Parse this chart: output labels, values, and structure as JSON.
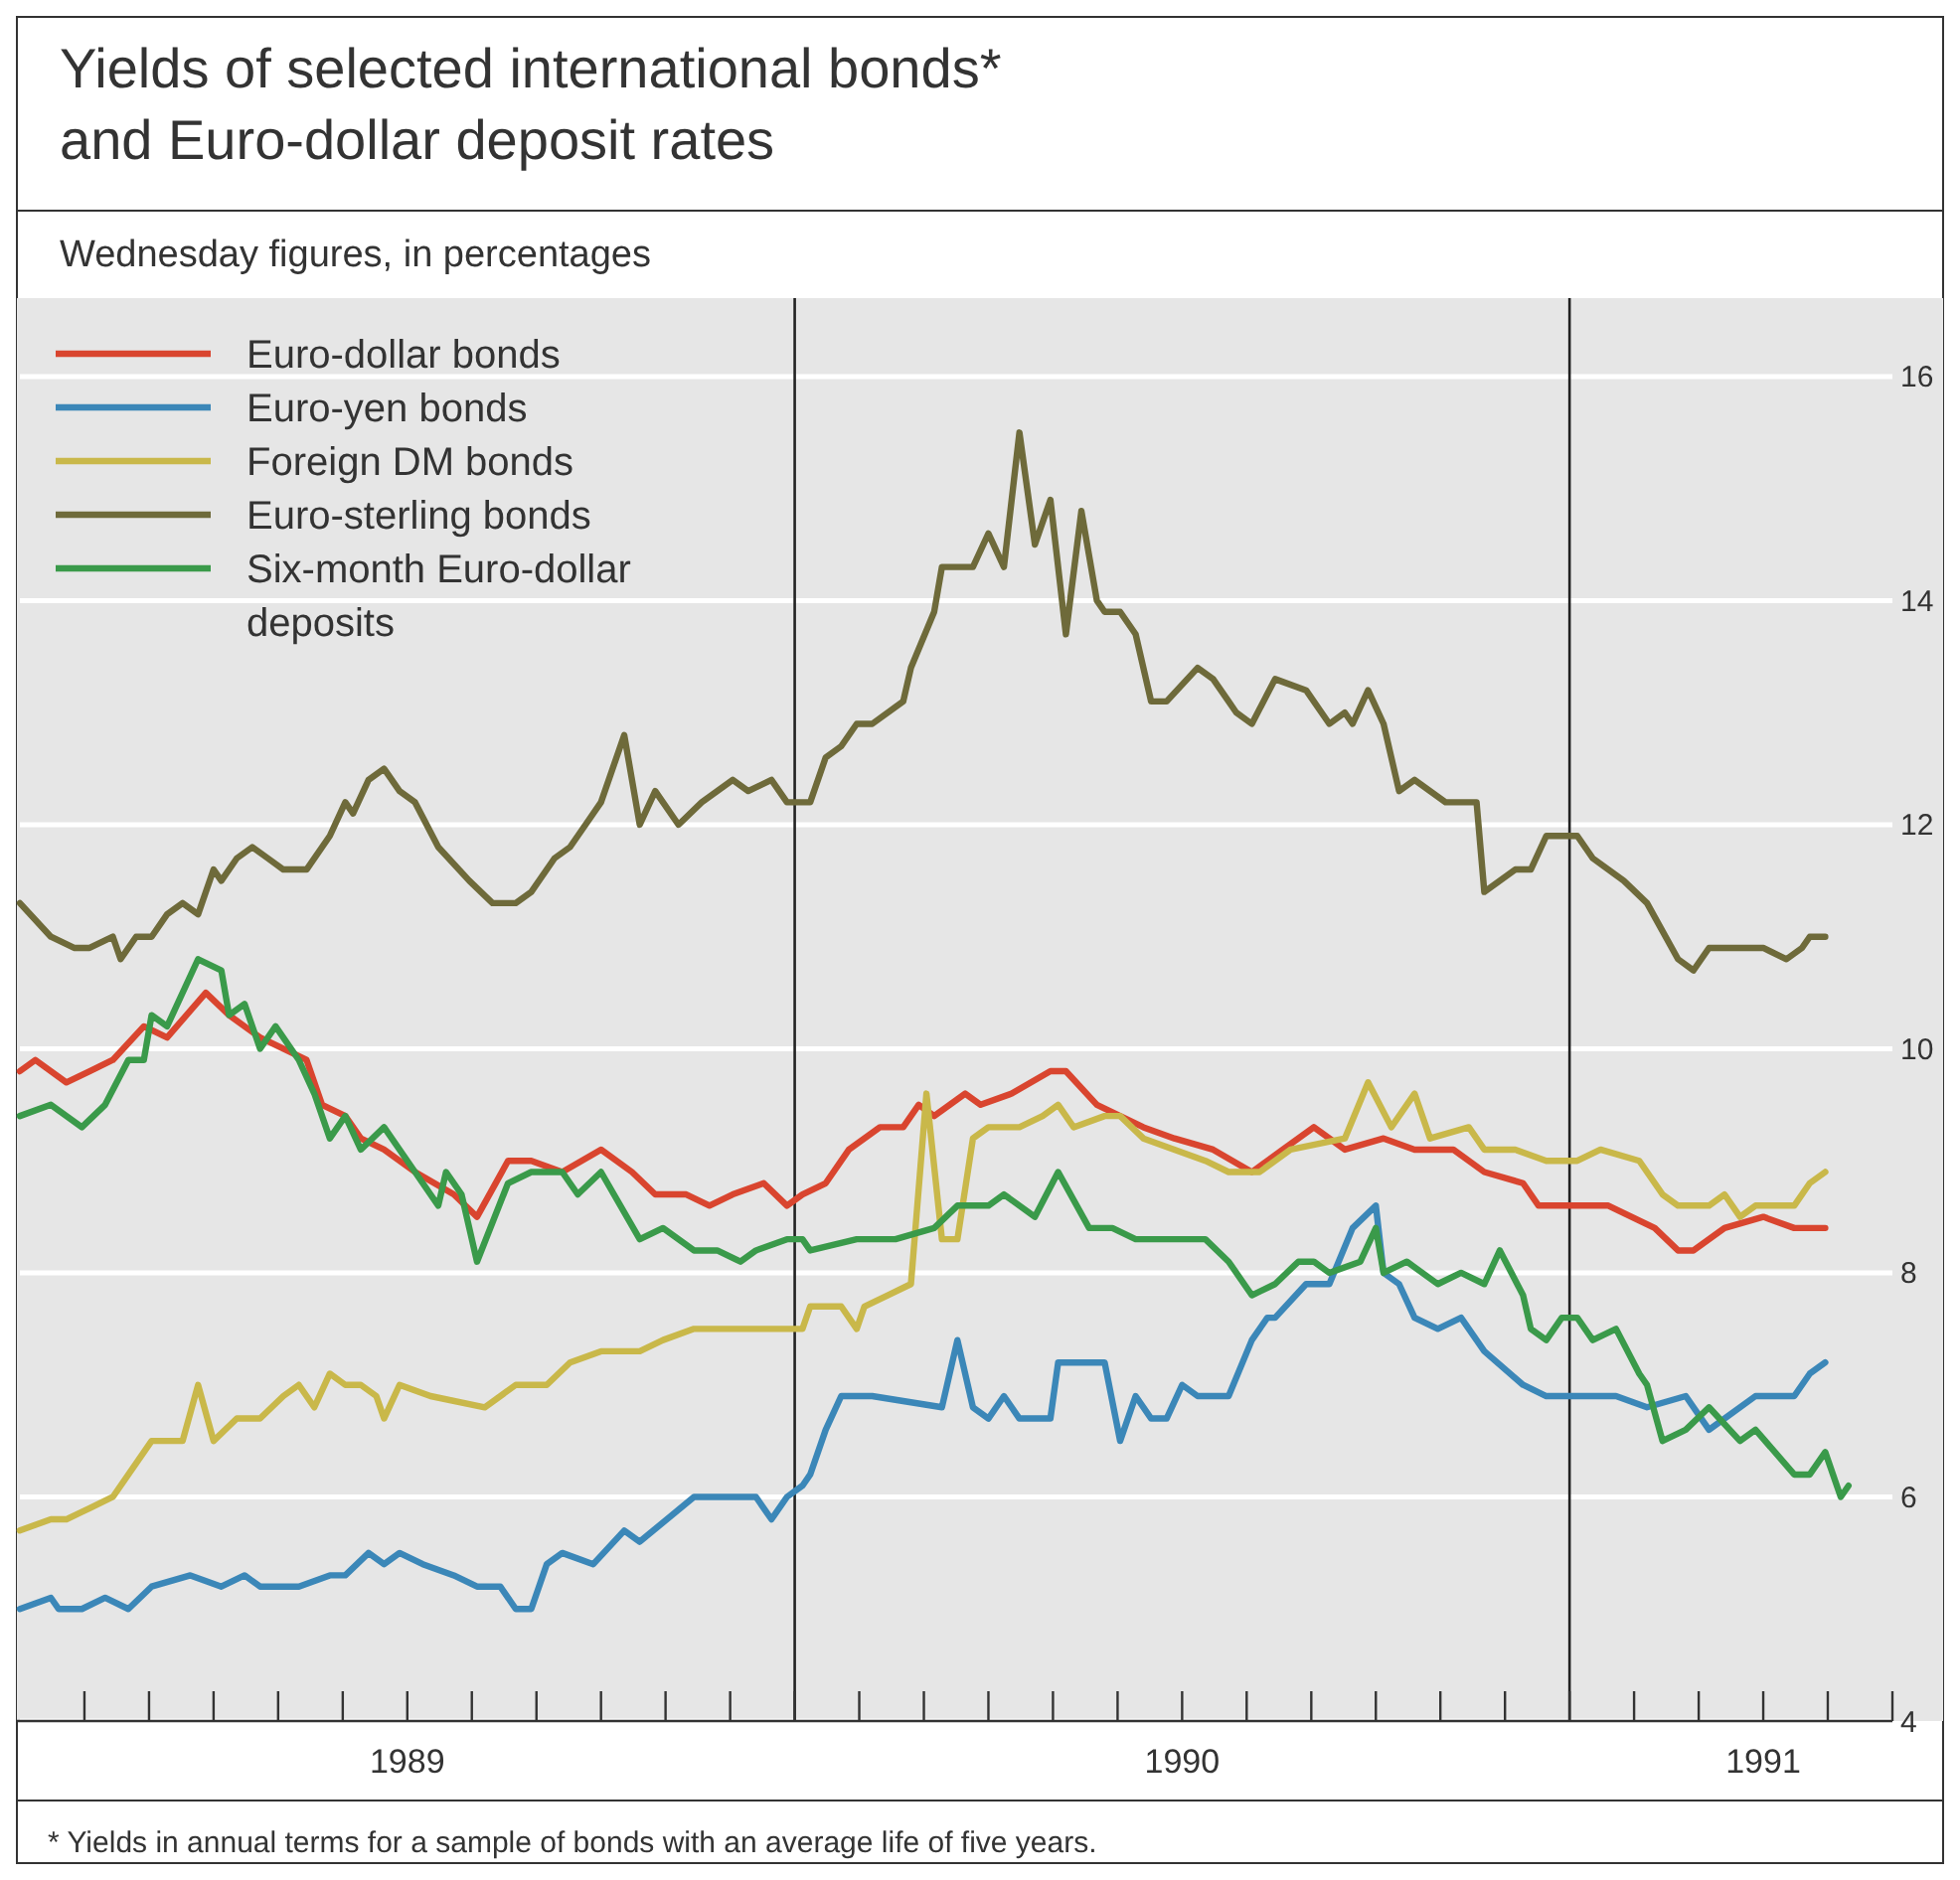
{
  "chart_data": {
    "type": "line",
    "title": "Yields of selected international bonds* and Euro-dollar deposit rates",
    "subtitle": "Wednesday figures, in percentages",
    "annotations": [
      "* Yields in annual terms for a sample of bonds with an average life of five years."
    ],
    "xlim": [
      1989,
      1991.4167
    ],
    "ylim": [
      4,
      16.7
    ],
    "yticks": [
      4,
      6,
      8,
      10,
      12,
      14,
      16
    ],
    "xticks": [
      {
        "value": 1989.0833,
        "label": null
      },
      {
        "value": 1989.1667,
        "label": null
      },
      {
        "value": 1989.25,
        "label": null
      },
      {
        "value": 1989.3333,
        "label": null
      },
      {
        "value": 1989.4167,
        "label": null
      },
      {
        "value": 1989.5,
        "label": "1989"
      },
      {
        "value": 1989.5833,
        "label": null
      },
      {
        "value": 1989.6667,
        "label": null
      },
      {
        "value": 1989.75,
        "label": null
      },
      {
        "value": 1989.8333,
        "label": null
      },
      {
        "value": 1989.9167,
        "label": null
      },
      {
        "value": 1990,
        "label": null
      },
      {
        "value": 1990.0833,
        "label": null
      },
      {
        "value": 1990.1667,
        "label": null
      },
      {
        "value": 1990.25,
        "label": null
      },
      {
        "value": 1990.3333,
        "label": null
      },
      {
        "value": 1990.4167,
        "label": null
      },
      {
        "value": 1990.5,
        "label": "1990"
      },
      {
        "value": 1990.5833,
        "label": null
      },
      {
        "value": 1990.6667,
        "label": null
      },
      {
        "value": 1990.75,
        "label": null
      },
      {
        "value": 1990.8333,
        "label": null
      },
      {
        "value": 1990.9167,
        "label": null
      },
      {
        "value": 1991,
        "label": null
      },
      {
        "value": 1991.0833,
        "label": null
      },
      {
        "value": 1991.1667,
        "label": null
      },
      {
        "value": 1991.25,
        "label": "1991"
      },
      {
        "value": 1991.3333,
        "label": null
      },
      {
        "value": 1991.4167,
        "label": null
      }
    ],
    "grid": "y",
    "legend": "top left",
    "line_style": "solid",
    "marker": "none",
    "ref_lines": [
      {
        "axis": "x",
        "value": 1990,
        "label": null,
        "color": "#222222"
      },
      {
        "axis": "x",
        "value": 1991,
        "label": null,
        "color": "#222222"
      }
    ],
    "series": [
      {
        "name": "Euro-dollar bonds",
        "color": "#d9452f",
        "x": [
          1989.0,
          1989.02,
          1989.06,
          1989.09,
          1989.12,
          1989.16,
          1989.19,
          1989.24,
          1989.27,
          1989.31,
          1989.34,
          1989.37,
          1989.39,
          1989.42,
          1989.44,
          1989.47,
          1989.51,
          1989.56,
          1989.59,
          1989.63,
          1989.66,
          1989.7,
          1989.75,
          1989.79,
          1989.82,
          1989.86,
          1989.89,
          1989.92,
          1989.96,
          1989.99,
          1990.01,
          1990.04,
          1990.07,
          1990.11,
          1990.14,
          1990.16,
          1990.18,
          1990.22,
          1990.24,
          1990.28,
          1990.33,
          1990.35,
          1990.39,
          1990.42,
          1990.45,
          1990.49,
          1990.54,
          1990.59,
          1990.63,
          1990.67,
          1990.71,
          1990.76,
          1990.8,
          1990.85,
          1990.89,
          1990.94,
          1990.96,
          1991.02,
          1991.05,
          1991.11,
          1991.14,
          1991.16,
          1991.2,
          1991.25,
          1991.29,
          1991.33
        ],
        "values": [
          9.8,
          9.9,
          9.7,
          9.8,
          9.9,
          10.2,
          10.1,
          10.5,
          10.3,
          10.1,
          10.0,
          9.9,
          9.5,
          9.4,
          9.2,
          9.1,
          8.9,
          8.7,
          8.5,
          9.0,
          9.0,
          8.9,
          9.1,
          8.9,
          8.7,
          8.7,
          8.6,
          8.7,
          8.8,
          8.6,
          8.7,
          8.8,
          9.1,
          9.3,
          9.3,
          9.5,
          9.4,
          9.6,
          9.5,
          9.6,
          9.8,
          9.8,
          9.5,
          9.4,
          9.3,
          9.2,
          9.1,
          8.9,
          9.1,
          9.3,
          9.1,
          9.2,
          9.1,
          9.1,
          8.9,
          8.8,
          8.6,
          8.6,
          8.6,
          8.4,
          8.2,
          8.2,
          8.4,
          8.5,
          8.4,
          8.4
        ]
      },
      {
        "name": "Euro-yen bonds",
        "color": "#3b87b8",
        "x": [
          1989.0,
          1989.04,
          1989.05,
          1989.08,
          1989.11,
          1989.14,
          1989.17,
          1989.22,
          1989.26,
          1989.29,
          1989.31,
          1989.34,
          1989.36,
          1989.4,
          1989.42,
          1989.45,
          1989.47,
          1989.49,
          1989.52,
          1989.56,
          1989.59,
          1989.62,
          1989.64,
          1989.66,
          1989.68,
          1989.7,
          1989.74,
          1989.78,
          1989.8,
          1989.87,
          1989.89,
          1989.95,
          1989.97,
          1989.99,
          1990.01,
          1990.02,
          1990.04,
          1990.06,
          1990.1,
          1990.19,
          1990.21,
          1990.23,
          1990.25,
          1990.27,
          1990.29,
          1990.33,
          1990.34,
          1990.39,
          1990.4,
          1990.42,
          1990.44,
          1990.46,
          1990.48,
          1990.5,
          1990.52,
          1990.56,
          1990.59,
          1990.61,
          1990.62,
          1990.66,
          1990.69,
          1990.72,
          1990.75,
          1990.76,
          1990.78,
          1990.8,
          1990.83,
          1990.86,
          1990.89,
          1990.94,
          1990.97,
          1991.02,
          1991.06,
          1991.1,
          1991.15,
          1991.18,
          1991.2,
          1991.24,
          1991.29,
          1991.31,
          1991.33
        ],
        "values": [
          5.0,
          5.1,
          5.0,
          5.0,
          5.1,
          5.0,
          5.2,
          5.3,
          5.2,
          5.3,
          5.2,
          5.2,
          5.2,
          5.3,
          5.3,
          5.5,
          5.4,
          5.5,
          5.4,
          5.3,
          5.2,
          5.2,
          5.0,
          5.0,
          5.4,
          5.5,
          5.4,
          5.7,
          5.6,
          6.0,
          6.0,
          6.0,
          5.8,
          6.0,
          6.1,
          6.2,
          6.6,
          6.9,
          6.9,
          6.8,
          7.4,
          6.8,
          6.7,
          6.9,
          6.7,
          6.7,
          7.2,
          7.2,
          7.2,
          6.5,
          6.9,
          6.7,
          6.7,
          7.0,
          6.9,
          6.9,
          7.4,
          7.6,
          7.6,
          7.9,
          7.9,
          8.4,
          8.6,
          8.0,
          7.9,
          7.6,
          7.5,
          7.6,
          7.3,
          7.0,
          6.9,
          6.9,
          6.9,
          6.8,
          6.9,
          6.6,
          6.7,
          6.9,
          6.9,
          7.1,
          7.2
        ]
      },
      {
        "name": "Foreign DM bonds",
        "color": "#c9b84a",
        "x": [
          1989.0,
          1989.04,
          1989.06,
          1989.09,
          1989.12,
          1989.17,
          1989.21,
          1989.23,
          1989.25,
          1989.28,
          1989.31,
          1989.34,
          1989.36,
          1989.38,
          1989.4,
          1989.42,
          1989.44,
          1989.46,
          1989.47,
          1989.49,
          1989.53,
          1989.6,
          1989.64,
          1989.68,
          1989.71,
          1989.75,
          1989.8,
          1989.83,
          1989.87,
          1989.92,
          1989.96,
          1989.99,
          1990.01,
          1990.02,
          1990.06,
          1990.08,
          1990.09,
          1990.12,
          1990.15,
          1990.17,
          1990.19,
          1990.21,
          1990.23,
          1990.25,
          1990.29,
          1990.32,
          1990.34,
          1990.36,
          1990.4,
          1990.42,
          1990.45,
          1990.49,
          1990.53,
          1990.56,
          1990.6,
          1990.64,
          1990.71,
          1990.74,
          1990.77,
          1990.8,
          1990.82,
          1990.87,
          1990.89,
          1990.93,
          1990.97,
          1991.01,
          1991.04,
          1991.09,
          1991.12,
          1991.14,
          1991.18,
          1991.2,
          1991.22,
          1991.24,
          1991.29,
          1991.31,
          1991.33
        ],
        "values": [
          5.7,
          5.8,
          5.8,
          5.9,
          6.0,
          6.5,
          6.5,
          7.0,
          6.5,
          6.7,
          6.7,
          6.9,
          7.0,
          6.8,
          7.1,
          7.0,
          7.0,
          6.9,
          6.7,
          7.0,
          6.9,
          6.8,
          7.0,
          7.0,
          7.2,
          7.3,
          7.3,
          7.4,
          7.5,
          7.5,
          7.5,
          7.5,
          7.5,
          7.7,
          7.7,
          7.5,
          7.7,
          7.8,
          7.9,
          9.6,
          8.3,
          8.3,
          9.2,
          9.3,
          9.3,
          9.4,
          9.5,
          9.3,
          9.4,
          9.4,
          9.2,
          9.1,
          9.0,
          8.9,
          8.9,
          9.1,
          9.2,
          9.7,
          9.3,
          9.6,
          9.2,
          9.3,
          9.1,
          9.1,
          9.0,
          9.0,
          9.1,
          9.0,
          8.7,
          8.6,
          8.6,
          8.7,
          8.5,
          8.6,
          8.6,
          8.8,
          8.9
        ]
      },
      {
        "name": "Euro-sterling bonds",
        "color": "#6e6a3a",
        "x": [
          1989.0,
          1989.04,
          1989.07,
          1989.09,
          1989.12,
          1989.13,
          1989.15,
          1989.17,
          1989.19,
          1989.21,
          1989.23,
          1989.25,
          1989.26,
          1989.28,
          1989.3,
          1989.32,
          1989.34,
          1989.37,
          1989.4,
          1989.42,
          1989.43,
          1989.45,
          1989.47,
          1989.49,
          1989.51,
          1989.54,
          1989.58,
          1989.61,
          1989.64,
          1989.66,
          1989.69,
          1989.71,
          1989.73,
          1989.75,
          1989.78,
          1989.8,
          1989.82,
          1989.85,
          1989.88,
          1989.92,
          1989.94,
          1989.97,
          1989.99,
          1990.01,
          1990.02,
          1990.04,
          1990.06,
          1990.08,
          1990.1,
          1990.14,
          1990.15,
          1990.18,
          1990.19,
          1990.23,
          1990.25,
          1990.27,
          1990.29,
          1990.31,
          1990.33,
          1990.35,
          1990.37,
          1990.39,
          1990.4,
          1990.42,
          1990.44,
          1990.46,
          1990.48,
          1990.52,
          1990.54,
          1990.56,
          1990.57,
          1990.59,
          1990.62,
          1990.66,
          1990.69,
          1990.71,
          1990.72,
          1990.74,
          1990.76,
          1990.78,
          1990.8,
          1990.82,
          1990.84,
          1990.88,
          1990.89,
          1990.93,
          1990.95,
          1990.97,
          1991.01,
          1991.03,
          1991.07,
          1991.1,
          1991.14,
          1991.16,
          1991.18,
          1991.25,
          1991.28,
          1991.3,
          1991.31,
          1991.33
        ],
        "values": [
          11.3,
          11.0,
          10.9,
          10.9,
          11.0,
          10.8,
          11.0,
          11.0,
          11.2,
          11.3,
          11.2,
          11.6,
          11.5,
          11.7,
          11.8,
          11.7,
          11.6,
          11.6,
          11.9,
          12.2,
          12.1,
          12.4,
          12.5,
          12.3,
          12.2,
          11.8,
          11.5,
          11.3,
          11.3,
          11.4,
          11.7,
          11.8,
          12.0,
          12.2,
          12.8,
          12.0,
          12.3,
          12.0,
          12.2,
          12.4,
          12.3,
          12.4,
          12.2,
          12.2,
          12.2,
          12.6,
          12.7,
          12.9,
          12.9,
          13.1,
          13.4,
          13.9,
          14.3,
          14.3,
          14.6,
          14.3,
          15.5,
          14.5,
          14.9,
          13.7,
          14.8,
          14.0,
          13.9,
          13.9,
          13.7,
          13.1,
          13.1,
          13.4,
          13.3,
          13.1,
          13.0,
          12.9,
          13.3,
          13.2,
          12.9,
          13.0,
          12.9,
          13.2,
          12.9,
          12.3,
          12.4,
          12.3,
          12.2,
          12.2,
          11.4,
          11.6,
          11.6,
          11.9,
          11.9,
          11.7,
          11.5,
          11.3,
          10.8,
          10.7,
          10.9,
          10.9,
          10.8,
          10.9,
          11.0,
          11.0
        ]
      },
      {
        "name": "Six-month Euro-dollar deposits",
        "color": "#3a9a4a",
        "x": [
          1989.0,
          1989.04,
          1989.08,
          1989.11,
          1989.14,
          1989.16,
          1989.17,
          1989.19,
          1989.23,
          1989.26,
          1989.27,
          1989.29,
          1989.31,
          1989.33,
          1989.36,
          1989.38,
          1989.4,
          1989.42,
          1989.44,
          1989.47,
          1989.51,
          1989.54,
          1989.55,
          1989.57,
          1989.59,
          1989.63,
          1989.66,
          1989.7,
          1989.72,
          1989.75,
          1989.8,
          1989.83,
          1989.87,
          1989.9,
          1989.93,
          1989.95,
          1989.99,
          1990.01,
          1990.02,
          1990.08,
          1990.13,
          1990.18,
          1990.21,
          1990.25,
          1990.27,
          1990.31,
          1990.34,
          1990.38,
          1990.41,
          1990.44,
          1990.47,
          1990.51,
          1990.53,
          1990.56,
          1990.59,
          1990.62,
          1990.65,
          1990.67,
          1990.69,
          1990.73,
          1990.75,
          1990.76,
          1990.79,
          1990.83,
          1990.86,
          1990.89,
          1990.91,
          1990.94,
          1990.95,
          1990.97,
          1990.99,
          1991.01,
          1991.03,
          1991.06,
          1991.09,
          1991.1,
          1991.12,
          1991.15,
          1991.18,
          1991.22,
          1991.24,
          1991.29,
          1991.31,
          1991.33,
          1991.35,
          1991.36
        ],
        "values": [
          9.4,
          9.5,
          9.3,
          9.5,
          9.9,
          9.9,
          10.3,
          10.2,
          10.8,
          10.7,
          10.3,
          10.4,
          10.0,
          10.2,
          9.9,
          9.6,
          9.2,
          9.4,
          9.1,
          9.3,
          8.9,
          8.6,
          8.9,
          8.7,
          8.1,
          8.8,
          8.9,
          8.9,
          8.7,
          8.9,
          8.3,
          8.4,
          8.2,
          8.2,
          8.1,
          8.2,
          8.3,
          8.3,
          8.2,
          8.3,
          8.3,
          8.4,
          8.6,
          8.6,
          8.7,
          8.5,
          8.9,
          8.4,
          8.4,
          8.3,
          8.3,
          8.3,
          8.3,
          8.1,
          7.8,
          7.9,
          8.1,
          8.1,
          8.0,
          8.1,
          8.4,
          8.0,
          8.1,
          7.9,
          8.0,
          7.9,
          8.2,
          7.8,
          7.5,
          7.4,
          7.6,
          7.6,
          7.4,
          7.5,
          7.1,
          7.0,
          6.5,
          6.6,
          6.8,
          6.5,
          6.6,
          6.2,
          6.2,
          6.4,
          6.0,
          6.1
        ]
      }
    ]
  }
}
